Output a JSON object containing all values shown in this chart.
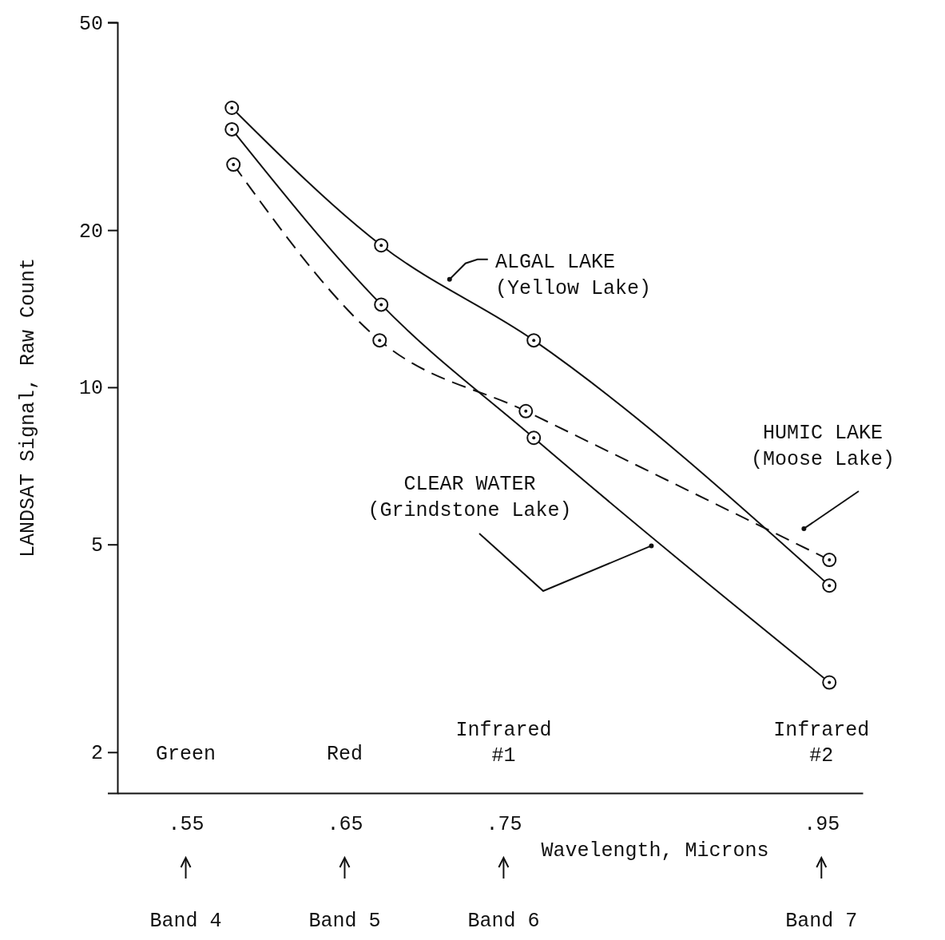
{
  "chart_data": {
    "type": "line",
    "xlabel": "Wavelength, Microns",
    "ylabel": "LANDSAT Signal, Raw Count",
    "log": "y",
    "xlim": [
      0.507,
      0.976
    ],
    "ylim": [
      1.67,
      50
    ],
    "xticks": [
      {
        "value": 0.55,
        "label": ".55"
      },
      {
        "value": 0.65,
        "label": ".65"
      },
      {
        "value": 0.75,
        "label": ".75"
      },
      {
        "value": 0.95,
        "label": ".95"
      }
    ],
    "yticks": [
      2,
      5,
      10,
      20,
      50
    ],
    "marker": "circle",
    "grid": false,
    "series": [
      {
        "color": "#111111",
        "line_style": "solid",
        "x": [
          0.579,
          0.673,
          0.769,
          0.955
        ],
        "values": [
          34.3,
          18.7,
          12.3,
          4.17
        ]
      },
      {
        "color": "#111111",
        "line_style": "solid",
        "x": [
          0.579,
          0.673,
          0.769,
          0.955
        ],
        "values": [
          31.2,
          14.4,
          8.0,
          2.72
        ]
      },
      {
        "color": "#111111",
        "line_style": "dashed",
        "x": [
          0.58,
          0.672,
          0.764,
          0.955
        ],
        "values": [
          26.7,
          12.3,
          9.0,
          4.67
        ]
      }
    ],
    "annotations": [
      {
        "text": "ALGAL LAKE\n(Yellow Lake)",
        "x": 0.716,
        "y": 16.1
      },
      {
        "text": "CLEAR WATER\n(Grindstone Lake)",
        "x": 0.843,
        "y": 4.97
      },
      {
        "text": "HUMIC LAKE\n(Moose Lake)",
        "x": 0.939,
        "y": 5.36
      },
      "Green",
      "Red",
      "Infrared\n#1",
      "Infrared\n#2",
      "Band 4",
      "Band 5",
      "Band 6",
      "Band 7"
    ]
  }
}
